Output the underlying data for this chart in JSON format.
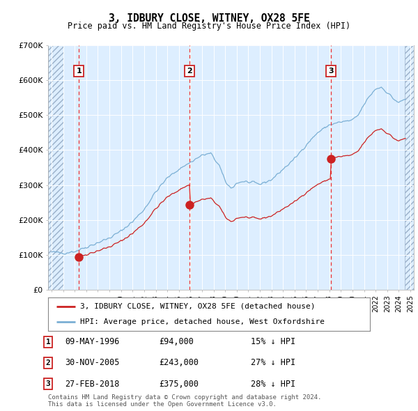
{
  "title": "3, IDBURY CLOSE, WITNEY, OX28 5FE",
  "subtitle": "Price paid vs. HM Land Registry's House Price Index (HPI)",
  "ylim": [
    0,
    700000
  ],
  "yticks": [
    0,
    100000,
    200000,
    300000,
    400000,
    500000,
    600000,
    700000
  ],
  "ytick_labels": [
    "£0",
    "£100K",
    "£200K",
    "£300K",
    "£400K",
    "£500K",
    "£600K",
    "£700K"
  ],
  "xlim_start": 1993.7,
  "xlim_end": 2025.3,
  "hatch_end": 1995.0,
  "hatch_start_right": 2024.5,
  "background_color": "#ffffff",
  "plot_bg_color": "#ddeeff",
  "grid_color": "#ffffff",
  "hpi_line_color": "#7bafd4",
  "price_line_color": "#cc2222",
  "vline_color": "#ee3333",
  "purchases": [
    {
      "date_num": 1996.36,
      "price": 94000,
      "label": "1",
      "date_str": "09-MAY-1996",
      "price_str": "£94,000",
      "hpi_str": "15% ↓ HPI"
    },
    {
      "date_num": 2005.92,
      "price": 243000,
      "label": "2",
      "date_str": "30-NOV-2005",
      "price_str": "£243,000",
      "hpi_str": "27% ↓ HPI"
    },
    {
      "date_num": 2018.16,
      "price": 375000,
      "label": "3",
      "date_str": "27-FEB-2018",
      "price_str": "£375,000",
      "hpi_str": "28% ↓ HPI"
    }
  ],
  "legend_line1": "3, IDBURY CLOSE, WITNEY, OX28 5FE (detached house)",
  "legend_line2": "HPI: Average price, detached house, West Oxfordshire",
  "footnote": "Contains HM Land Registry data © Crown copyright and database right 2024.\nThis data is licensed under the Open Government Licence v3.0."
}
